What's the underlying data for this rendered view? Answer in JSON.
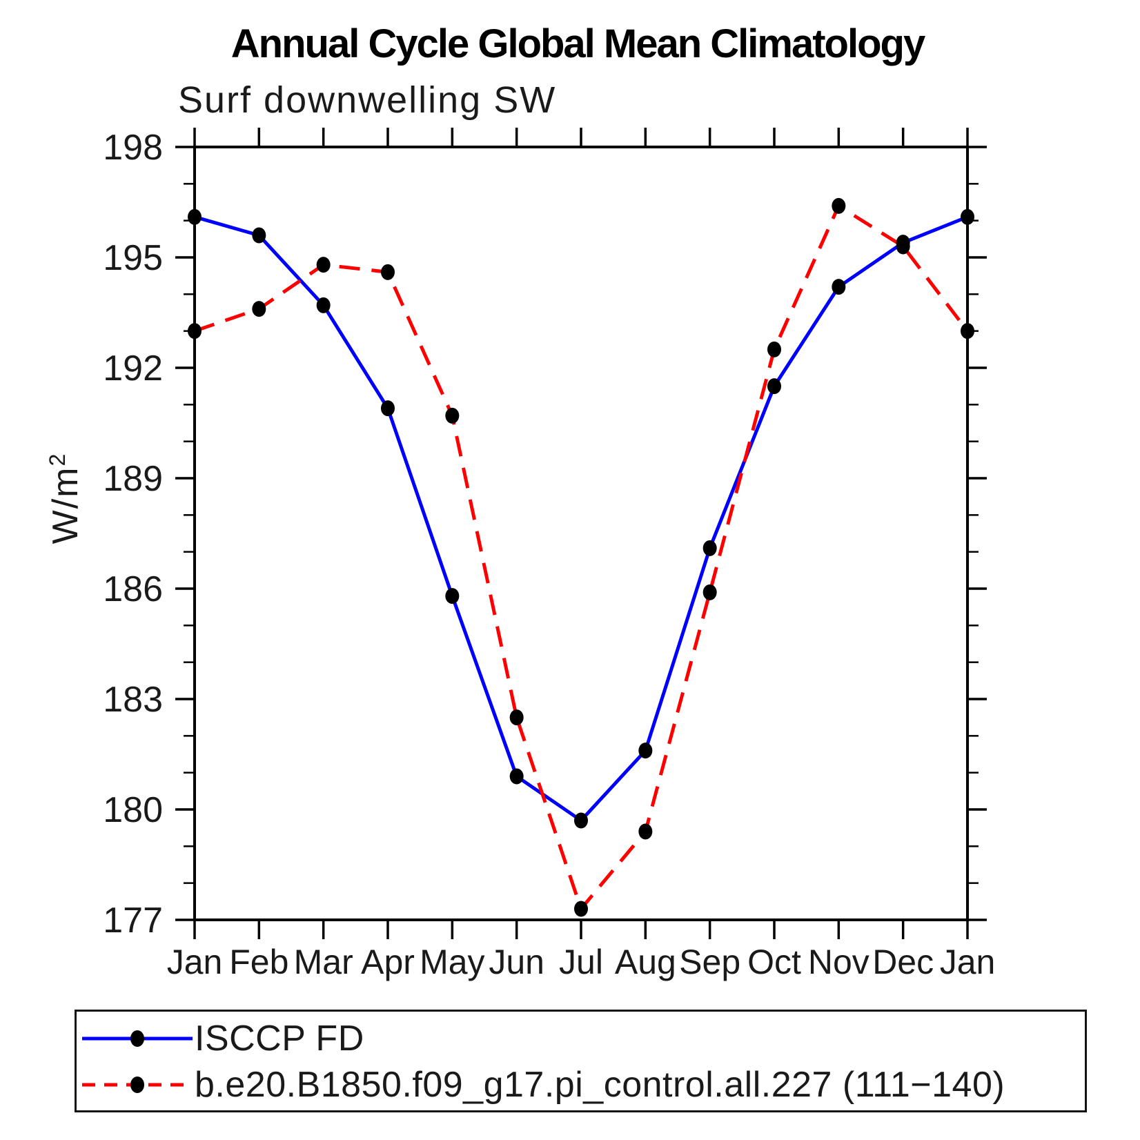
{
  "chart_data": {
    "type": "line",
    "title": "Annual Cycle Global Mean Climatology",
    "subtitle": "Surf downwelling SW",
    "ylabel": "W/m²",
    "ylabel_base": "W/m",
    "ylabel_sup": "2",
    "categories": [
      "Jan",
      "Feb",
      "Mar",
      "Apr",
      "May",
      "Jun",
      "Jul",
      "Aug",
      "Sep",
      "Oct",
      "Nov",
      "Dec",
      "Jan"
    ],
    "ylim": [
      177,
      198
    ],
    "ytick_major_step": 3,
    "ytick_minor_step": 1,
    "ytick_labels": [
      "177",
      "180",
      "183",
      "186",
      "189",
      "192",
      "195",
      "198"
    ],
    "grid": false,
    "legend_position": "bottom",
    "axis_color": "#000000",
    "background_color": "#ffffff",
    "series": [
      {
        "name": "ISCCP FD",
        "color": "#0000ff",
        "line_style": "solid",
        "marker": "filled-circle",
        "marker_color": "#000000",
        "values": [
          196.1,
          195.6,
          193.7,
          190.9,
          185.8,
          180.9,
          179.7,
          181.6,
          187.1,
          191.5,
          194.2,
          195.4,
          196.1
        ]
      },
      {
        "name": "b.e20.B1850.f09_g17.pi_control.all.227 (111−140)",
        "color": "#ff0000",
        "line_style": "dashed",
        "marker": "filled-circle",
        "marker_color": "#000000",
        "values": [
          193.0,
          193.6,
          194.8,
          194.6,
          190.7,
          182.5,
          177.3,
          179.4,
          185.9,
          192.5,
          196.4,
          195.3,
          193.0
        ]
      }
    ]
  }
}
